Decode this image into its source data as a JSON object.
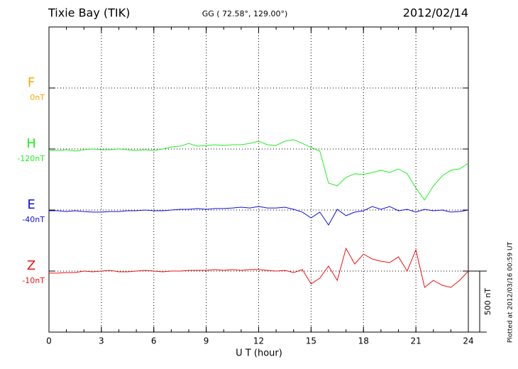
{
  "chart_data": {
    "type": "line",
    "title": "Tixie Bay (TIK)",
    "subtitle": "GG ( 72.58°, 129.00°)",
    "date": "2012/02/14",
    "x_label": "U T (hour)",
    "footnote": "Plotted at 2012/03/16 00:59 UT",
    "scale_bar": {
      "value": 500,
      "label": "500 nT"
    },
    "xlim": [
      0,
      24
    ],
    "xticks": [
      0,
      3,
      6,
      9,
      12,
      15,
      18,
      21,
      24
    ],
    "grid": true,
    "x": [
      0,
      0.5,
      1,
      1.5,
      2,
      2.5,
      3,
      3.5,
      4,
      4.5,
      5,
      5.5,
      6,
      6.5,
      7,
      7.5,
      8,
      8.5,
      9,
      9.5,
      10,
      10.5,
      11,
      11.5,
      12,
      12.5,
      13,
      13.5,
      14,
      14.5,
      15,
      15.5,
      16,
      16.5,
      17,
      17.5,
      18,
      18.5,
      19,
      19.5,
      20,
      20.5,
      21,
      21.5,
      22,
      22.5,
      23,
      23.5,
      24
    ],
    "series": [
      {
        "name": "F",
        "offset_label": "0nT",
        "color": "#ffa500",
        "values": [
          null,
          null,
          null,
          null,
          null,
          null,
          null,
          null,
          null,
          null,
          null,
          null,
          null,
          null,
          null,
          null,
          null,
          null,
          null,
          null,
          null,
          null,
          null,
          null,
          null,
          null,
          null,
          null,
          null,
          null,
          null,
          null,
          null,
          null,
          null,
          null,
          null,
          null,
          null,
          null,
          null,
          null,
          null,
          null,
          null,
          null,
          null,
          null,
          null
        ]
      },
      {
        "name": "H",
        "offset_label": "-120nT",
        "color": "#22ee22",
        "values": [
          -12,
          -12,
          -6,
          -17,
          -6,
          0,
          -6,
          -6,
          0,
          -6,
          -12,
          -6,
          -12,
          0,
          17,
          23,
          46,
          23,
          29,
          35,
          29,
          35,
          35,
          46,
          64,
          35,
          29,
          64,
          76,
          46,
          12,
          -17,
          -279,
          -302,
          -232,
          -203,
          -209,
          -192,
          -174,
          -192,
          -163,
          -203,
          -319,
          -418,
          -302,
          -221,
          -174,
          -163,
          -116
        ]
      },
      {
        "name": "E",
        "offset_label": "-40nT",
        "color": "#1010dd",
        "values": [
          -6,
          -6,
          -12,
          -6,
          -12,
          -17,
          -17,
          -12,
          -12,
          -6,
          -6,
          0,
          -6,
          -6,
          0,
          6,
          6,
          12,
          6,
          12,
          12,
          17,
          23,
          17,
          29,
          17,
          17,
          23,
          6,
          -17,
          -64,
          -17,
          -122,
          6,
          -46,
          -17,
          -6,
          29,
          6,
          29,
          -6,
          6,
          -17,
          6,
          -6,
          0,
          -17,
          -12,
          0
        ]
      },
      {
        "name": "Z",
        "offset_label": "-10nT",
        "color": "#ee1111",
        "values": [
          -17,
          -17,
          -12,
          -12,
          0,
          -6,
          0,
          6,
          -6,
          -6,
          0,
          6,
          0,
          -6,
          0,
          0,
          6,
          6,
          6,
          12,
          6,
          12,
          6,
          12,
          12,
          6,
          0,
          6,
          -12,
          12,
          -105,
          -58,
          41,
          -76,
          186,
          58,
          139,
          99,
          81,
          70,
          116,
          0,
          174,
          -134,
          -76,
          -116,
          -134,
          -76,
          0
        ]
      }
    ]
  }
}
